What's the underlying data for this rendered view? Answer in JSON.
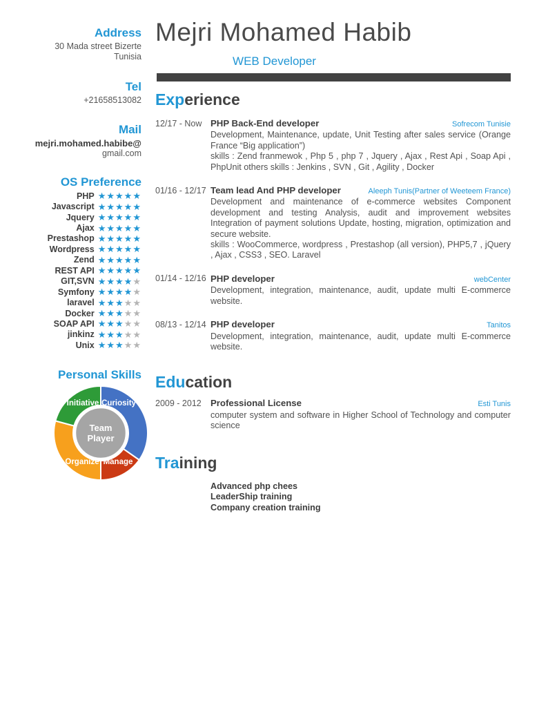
{
  "accent_color": "#2196d4",
  "header": {
    "name": "Mejri Mohamed Habib",
    "role": "WEB Developer"
  },
  "contact": {
    "address_label": "Address",
    "address_line1": "30 Mada street Bizerte",
    "address_line2": "Tunisia",
    "tel_label": "Tel",
    "tel": "+21658513082",
    "mail_label": "Mail",
    "mail_line1": "mejri.mohamed.habibe@",
    "mail_line2": "gmail.com"
  },
  "os_preference": {
    "title": "OS Preference",
    "max_stars": 5,
    "filled_color": "#2196d4",
    "empty_color": "#b5b5b5",
    "skills": [
      {
        "name": "PHP",
        "rating": 5
      },
      {
        "name": "Javascript",
        "rating": 5
      },
      {
        "name": "Jquery",
        "rating": 5
      },
      {
        "name": "Ajax",
        "rating": 5
      },
      {
        "name": "Prestashop",
        "rating": 5
      },
      {
        "name": "Wordpress",
        "rating": 5
      },
      {
        "name": "Zend",
        "rating": 5
      },
      {
        "name": "REST API",
        "rating": 5
      },
      {
        "name": "GIT,SVN",
        "rating": 4
      },
      {
        "name": "Symfony",
        "rating": 4
      },
      {
        "name": "laravel",
        "rating": 3
      },
      {
        "name": "Docker",
        "rating": 3
      },
      {
        "name": "SOAP API",
        "rating": 3
      },
      {
        "name": "jinkinz",
        "rating": 3
      },
      {
        "name": "Unix",
        "rating": 3
      }
    ]
  },
  "personal_skills": {
    "title": "Personal Skills",
    "chart": {
      "type": "pie",
      "center_label_lines": [
        "Team",
        "Player"
      ],
      "center_color": "#a5a5a5",
      "segments": [
        {
          "label": "Curiosity",
          "color": "#4472c4",
          "start_deg": 0,
          "end_deg": 125
        },
        {
          "label": "Manage",
          "color": "#cb3a14",
          "start_deg": 125,
          "end_deg": 180
        },
        {
          "label": "Organize",
          "color": "#f7a01d",
          "start_deg": 180,
          "end_deg": 285
        },
        {
          "label": "Initiative",
          "color": "#2e9b38",
          "start_deg": 285,
          "end_deg": 360
        }
      ]
    }
  },
  "sections": {
    "experience": {
      "title": {
        "highlight": "Exp",
        "rest": "erience"
      },
      "entries": [
        {
          "date": "12/17 - Now",
          "title": "PHP Back-End developer",
          "company": "Sofrecom Tunisie",
          "description": "Development, Maintenance, update, Unit Testing after sales service (Orange France “Big application”)",
          "skills": "skills : Zend franmewok , Php 5 , php 7 , Jquery , Ajax , Rest Api , Soap Api , PhpUnit others skills : Jenkins , SVN , Git , Agility , Docker"
        },
        {
          "date": "01/16 - 12/17",
          "title": "Team lead And PHP developer",
          "company": "Aleeph Tunis(Partner of Weeteem France)",
          "description": "Development and maintenance of e-commerce websites Component development and testing Analysis, audit and improvement websites Integration of payment solutions Update, hosting, migration, optimization and secure website.",
          "skills": "skills : WooCommerce, wordpress , Prestashop (all version), PHP5,7 , jQuery , Ajax , CSS3 , SEO. Laravel"
        },
        {
          "date": "01/14 - 12/16",
          "title": "PHP developer",
          "company": "webCenter",
          "description": "Development, integration, maintenance, audit, update multi E-commerce website."
        },
        {
          "date": "08/13 - 12/14",
          "title": "PHP developer",
          "company": "Tanitos",
          "description": "Development, integration, maintenance, audit, update multi E-commerce website."
        }
      ]
    },
    "education": {
      "title": {
        "highlight": "Edu",
        "rest": "cation"
      },
      "entries": [
        {
          "date": "2009 - 2012",
          "title": "Professional License",
          "company": "Esti Tunis",
          "description": "computer system and software in Higher School of Technology and computer science"
        }
      ]
    },
    "training": {
      "title": {
        "highlight": "Tra",
        "rest": "ining"
      },
      "items": [
        "Advanced php chees",
        "LeaderShip training",
        "Company creation training"
      ]
    }
  }
}
